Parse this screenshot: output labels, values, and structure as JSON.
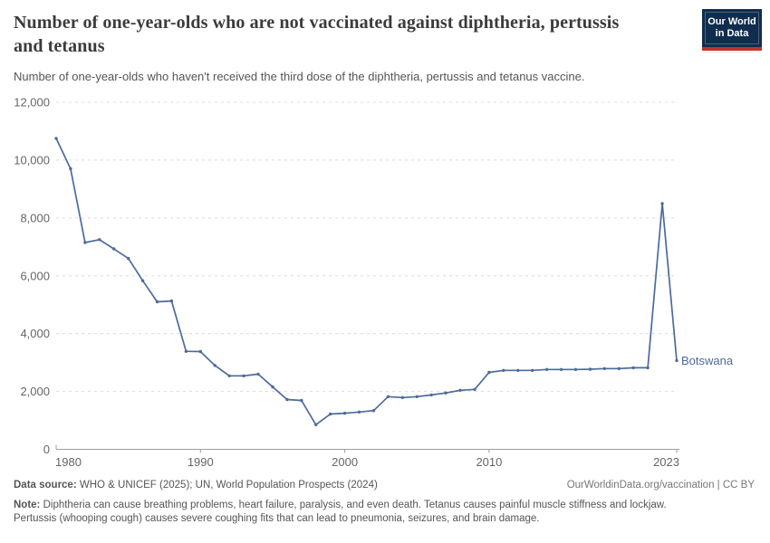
{
  "header": {
    "title": "Number of one-year-olds who are not vaccinated against diphtheria, pertussis and tetanus",
    "subtitle": "Number of one-year-olds who haven't received the third dose of the diphtheria, pertussis and tetanus vaccine.",
    "logo": {
      "line1": "Our World",
      "line2": "in Data"
    }
  },
  "chart_data": {
    "type": "line",
    "title": "Number of one-year-olds who are not vaccinated against diphtheria, pertussis and tetanus",
    "xlabel": "",
    "ylabel": "",
    "xlim": [
      1980,
      2023
    ],
    "ylim": [
      0,
      12000
    ],
    "x_ticks": [
      1980,
      1990,
      2000,
      2010,
      2023
    ],
    "y_ticks": [
      0,
      2000,
      4000,
      6000,
      8000,
      10000,
      12000
    ],
    "grid": "horizontal-dashed",
    "legend_position": "end-of-line-label",
    "series": [
      {
        "name": "Botswana",
        "color": "#4C6A9C",
        "x": [
          1980,
          1981,
          1982,
          1983,
          1984,
          1985,
          1986,
          1987,
          1988,
          1989,
          1990,
          1991,
          1992,
          1993,
          1994,
          1995,
          1996,
          1997,
          1998,
          1999,
          2000,
          2001,
          2002,
          2003,
          2004,
          2005,
          2006,
          2007,
          2008,
          2009,
          2010,
          2011,
          2012,
          2013,
          2014,
          2015,
          2016,
          2017,
          2018,
          2019,
          2020,
          2021,
          2022,
          2023
        ],
        "values": [
          10750,
          9700,
          7150,
          7250,
          6930,
          6600,
          5830,
          5100,
          5130,
          3390,
          3380,
          2900,
          2540,
          2540,
          2600,
          2160,
          1720,
          1690,
          850,
          1220,
          1250,
          1290,
          1340,
          1820,
          1790,
          1820,
          1880,
          1950,
          2040,
          2070,
          2660,
          2730,
          2730,
          2730,
          2760,
          2760,
          2760,
          2770,
          2790,
          2790,
          2820,
          2820,
          8500,
          3070
        ]
      }
    ]
  },
  "footer": {
    "data_source_label": "Data source:",
    "data_source": " WHO & UNICEF (2025); UN, World Population Prospects (2024)",
    "attribution": "OurWorldinData.org/vaccination | CC BY",
    "note_label": "Note:",
    "note": " Diphtheria can cause breathing problems, heart failure, paralysis, and even death. Tetanus causes painful muscle stiffness and lockjaw. Pertussis (whooping cough) causes severe coughing fits that can lead to pneumonia, seizures, and brain damage."
  },
  "colors": {
    "line": "#4C6A9C",
    "grid": "#dcdcdc",
    "axis": "#9e9e9e",
    "tick_text": "#666666",
    "title_text": "#3b3b3b",
    "body_text": "#555555",
    "logo_navy": "#102d4e",
    "logo_red": "#c4312b"
  }
}
